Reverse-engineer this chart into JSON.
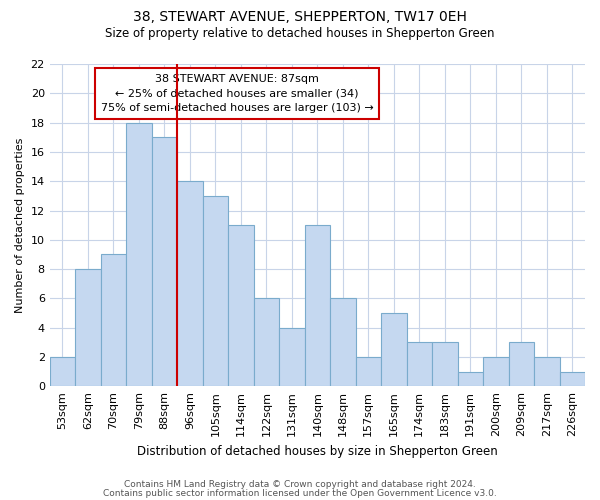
{
  "title1": "38, STEWART AVENUE, SHEPPERTON, TW17 0EH",
  "title2": "Size of property relative to detached houses in Shepperton Green",
  "xlabel": "Distribution of detached houses by size in Shepperton Green",
  "ylabel": "Number of detached properties",
  "categories": [
    "53sqm",
    "62sqm",
    "70sqm",
    "79sqm",
    "88sqm",
    "96sqm",
    "105sqm",
    "114sqm",
    "122sqm",
    "131sqm",
    "140sqm",
    "148sqm",
    "157sqm",
    "165sqm",
    "174sqm",
    "183sqm",
    "191sqm",
    "200sqm",
    "209sqm",
    "217sqm",
    "226sqm"
  ],
  "values": [
    2,
    8,
    9,
    18,
    17,
    14,
    13,
    11,
    6,
    4,
    11,
    6,
    2,
    5,
    3,
    3,
    1,
    2,
    3,
    2,
    1
  ],
  "bar_color": "#c5d8f0",
  "bar_edge_color": "#7aabcc",
  "vline_color": "#cc0000",
  "vline_x": 4.5,
  "annotation_line1": "38 STEWART AVENUE: 87sqm",
  "annotation_line2": "← 25% of detached houses are smaller (34)",
  "annotation_line3": "75% of semi-detached houses are larger (103) →",
  "annotation_box_color": "#ffffff",
  "annotation_box_edge": "#cc0000",
  "ylim": [
    0,
    22
  ],
  "yticks": [
    0,
    2,
    4,
    6,
    8,
    10,
    12,
    14,
    16,
    18,
    20,
    22
  ],
  "footer1": "Contains HM Land Registry data © Crown copyright and database right 2024.",
  "footer2": "Contains public sector information licensed under the Open Government Licence v3.0.",
  "bg_color": "#ffffff",
  "plot_bg_color": "#ffffff",
  "grid_color": "#c8d4e8"
}
